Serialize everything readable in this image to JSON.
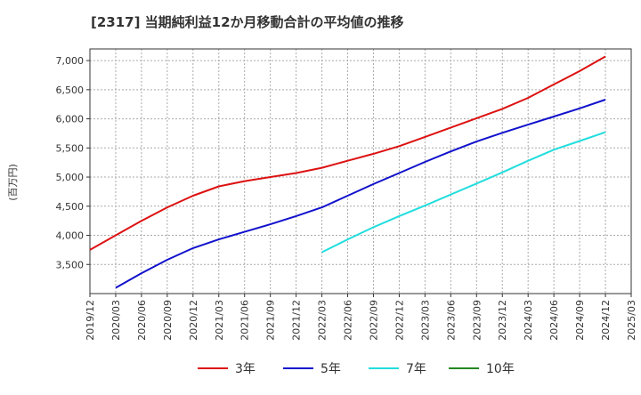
{
  "chart_data": {
    "type": "line",
    "title": "[2317]  当期純利益12か月移動合計の平均値の推移",
    "ylabel": "(百万円)",
    "xlabel": "",
    "ylim": [
      3000,
      7200
    ],
    "yticks": [
      3500,
      4000,
      4500,
      5000,
      5500,
      6000,
      6500,
      7000
    ],
    "ytick_labels": [
      "3,500",
      "4,000",
      "4,500",
      "5,000",
      "5,500",
      "6,000",
      "6,500",
      "7,000"
    ],
    "xticks": [
      "2019/12",
      "2020/03",
      "2020/06",
      "2020/09",
      "2020/12",
      "2021/03",
      "2021/06",
      "2021/09",
      "2021/12",
      "2022/03",
      "2022/06",
      "2022/09",
      "2022/12",
      "2023/03",
      "2023/06",
      "2023/09",
      "2023/12",
      "2024/03",
      "2024/06",
      "2024/09",
      "2024/12",
      "2025/03"
    ],
    "grid": true,
    "legend_position": "bottom",
    "series": [
      {
        "name": "3年",
        "color": "#dd1111",
        "x": [
          "2019/12",
          "2020/03",
          "2020/06",
          "2020/09",
          "2020/12",
          "2021/03",
          "2021/06",
          "2021/09",
          "2021/12",
          "2022/03",
          "2022/06",
          "2022/09",
          "2022/12",
          "2023/03",
          "2023/06",
          "2023/09",
          "2023/12",
          "2024/03",
          "2024/06",
          "2024/09",
          "2024/12"
        ],
        "values": [
          3750,
          4000,
          4250,
          4480,
          4680,
          4840,
          4930,
          5000,
          5070,
          5160,
          5280,
          5400,
          5530,
          5690,
          5850,
          6010,
          6170,
          6360,
          6590,
          6820,
          7070
        ]
      },
      {
        "name": "5年",
        "color": "#1111cc",
        "x": [
          "2020/03",
          "2020/06",
          "2020/09",
          "2020/12",
          "2021/03",
          "2021/06",
          "2021/09",
          "2021/12",
          "2022/03",
          "2022/06",
          "2022/09",
          "2022/12",
          "2023/03",
          "2023/06",
          "2023/09",
          "2023/12",
          "2024/03",
          "2024/06",
          "2024/09",
          "2024/12"
        ],
        "values": [
          3100,
          3350,
          3580,
          3780,
          3930,
          4060,
          4190,
          4330,
          4480,
          4680,
          4880,
          5070,
          5260,
          5440,
          5610,
          5760,
          5900,
          6040,
          6180,
          6330
        ]
      },
      {
        "name": "7年",
        "color": "#22dddd",
        "x": [
          "2022/03",
          "2022/06",
          "2022/09",
          "2022/12",
          "2023/03",
          "2023/06",
          "2023/09",
          "2023/12",
          "2024/03",
          "2024/06",
          "2024/09",
          "2024/12"
        ],
        "values": [
          3710,
          3930,
          4140,
          4330,
          4510,
          4700,
          4890,
          5080,
          5280,
          5470,
          5620,
          5770
        ]
      },
      {
        "name": "10年",
        "color": "#228822",
        "x": [],
        "values": []
      }
    ]
  }
}
